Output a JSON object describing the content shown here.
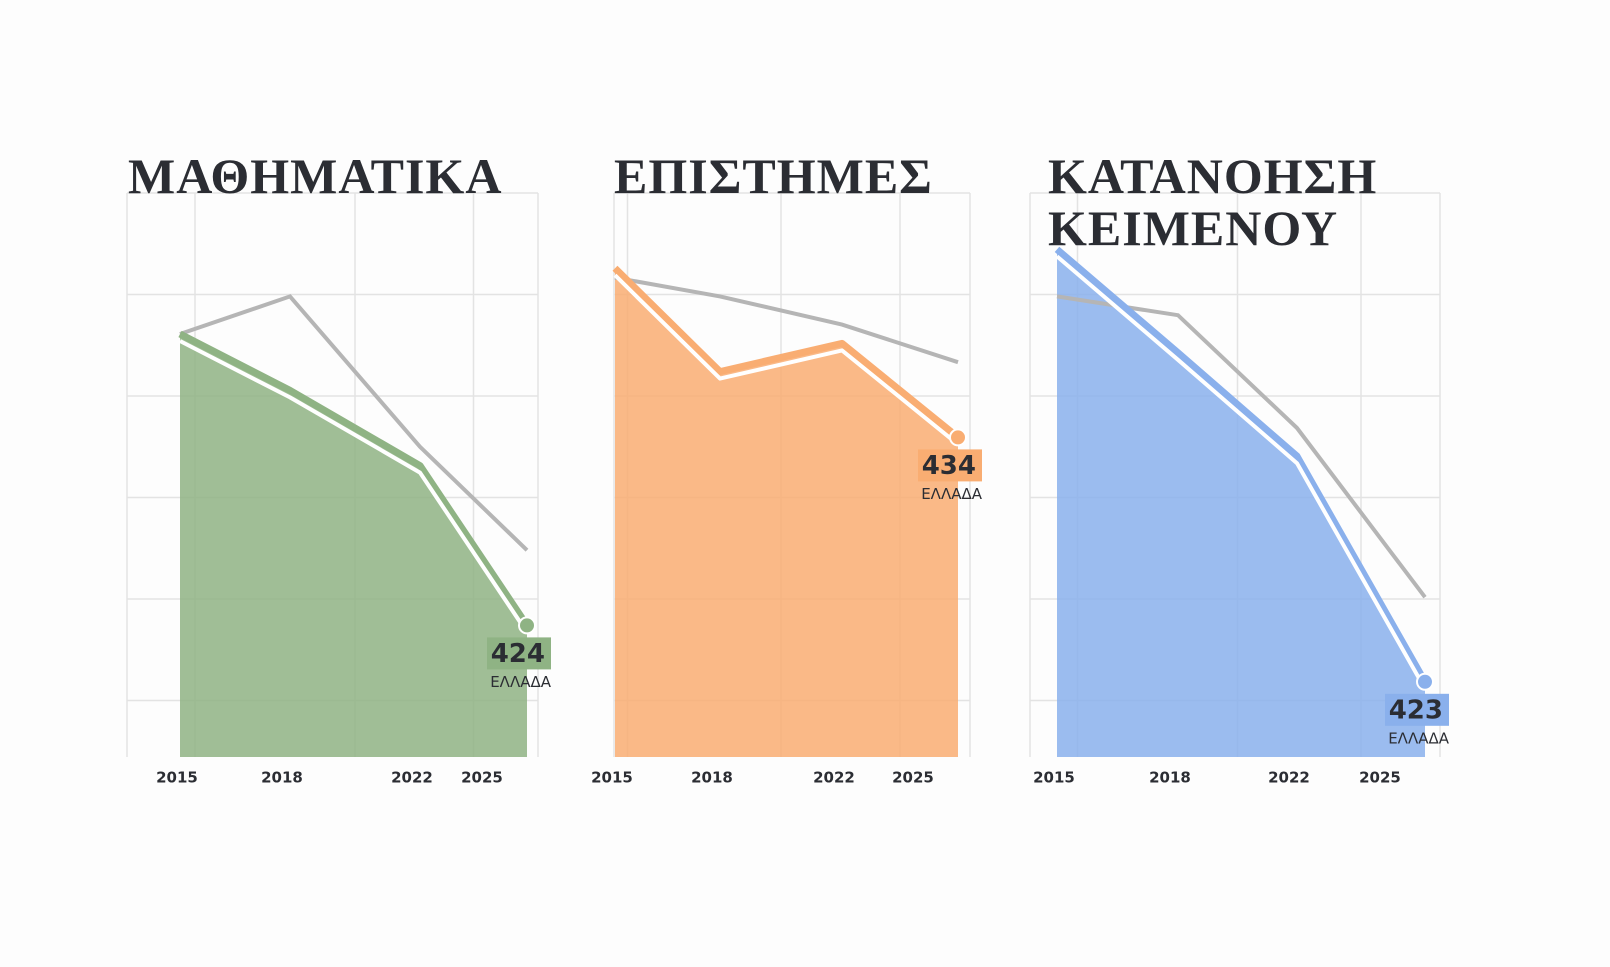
{
  "chart_data": [
    {
      "type": "area",
      "title": "ΜΑΘΗΜΑΤΙΚΑ",
      "categories": [
        "2015",
        "2018",
        "2022",
        "2025"
      ],
      "series": [
        {
          "name": "ΕΛΛΑΔΑ",
          "color": "#8fb384",
          "values": [
            455,
            449,
            441,
            424
          ]
        },
        {
          "color": "#b5b5b5",
          "values": [
            455,
            459,
            443,
            432
          ]
        }
      ],
      "ylim": [
        410,
        470
      ],
      "grid": true
    },
    {
      "type": "area",
      "title": "ΕΠΙΣΤΗΜΕΣ",
      "categories": [
        "2015",
        "2018",
        "2022",
        "2025"
      ],
      "series": [
        {
          "name": "ΕΛΛΑΔΑ",
          "color": "#f9ad72",
          "values": [
            452,
            441,
            444,
            434
          ]
        },
        {
          "color": "#b5b5b5",
          "values": [
            451,
            449,
            446,
            442
          ]
        }
      ],
      "ylim": [
        400,
        460
      ],
      "grid": true
    },
    {
      "type": "area",
      "title": "ΚΑΤΑΝΟΗΣΗ ΚΕΙΜΕΝΟΥ",
      "categories": [
        "2015",
        "2018",
        "2022",
        "2025"
      ],
      "series": [
        {
          "name": "ΕΛΛΑΔΑ",
          "color": "#8ab0ec",
          "values": [
            469,
            458,
            447,
            423
          ]
        },
        {
          "color": "#b5b5b5",
          "values": [
            464,
            462,
            450,
            432
          ]
        }
      ],
      "ylim": [
        415,
        475
      ],
      "grid": true
    }
  ]
}
